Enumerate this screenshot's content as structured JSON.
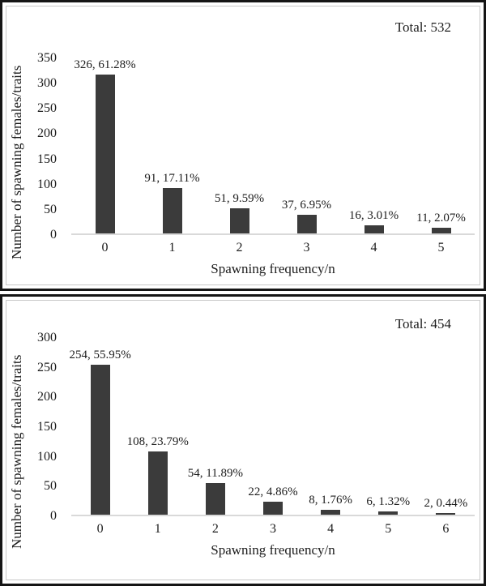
{
  "colors": {
    "bar_fill": "#3b3b3b",
    "axis_baseline": "#d9d9d9",
    "text": "#1c1c1c",
    "panel_border_outer": "#151515",
    "panel_border_inner": "#c9c9c9",
    "background": "#ffffff"
  },
  "chart_data": [
    {
      "type": "bar",
      "total_label": "Total: 532",
      "total": 532,
      "xlabel": "Spawning frequency/n",
      "ylabel": "Number of spawning females/traits",
      "categories": [
        "0",
        "1",
        "2",
        "3",
        "4",
        "5"
      ],
      "values": [
        326,
        91,
        51,
        37,
        16,
        11
      ],
      "percentages": [
        61.28,
        17.11,
        9.59,
        6.95,
        3.01,
        2.07
      ],
      "bar_labels": [
        "326, 61.28%",
        "91, 17.11%",
        "51, 9.59%",
        "37, 6.95%",
        "16, 3.01%",
        "11, 2.07%"
      ],
      "ymax": 350,
      "yticks": [
        0,
        50,
        100,
        150,
        200,
        250,
        300,
        350
      ],
      "grid": "off",
      "legend": "none"
    },
    {
      "type": "bar",
      "total_label": "Total: 454",
      "total": 454,
      "xlabel": "Spawning frequency/n",
      "ylabel": "Number of spawning females/traits",
      "categories": [
        "0",
        "1",
        "2",
        "3",
        "4",
        "5",
        "6"
      ],
      "values": [
        254,
        108,
        54,
        22,
        8,
        6,
        2
      ],
      "percentages": [
        55.95,
        23.79,
        11.89,
        4.86,
        1.76,
        1.32,
        0.44
      ],
      "bar_labels": [
        "254, 55.95%",
        "108, 23.79%",
        "54, 11.89%",
        "22, 4.86%",
        "8, 1.76%",
        "6, 1.32%",
        "2, 0.44%"
      ],
      "ymax": 300,
      "yticks": [
        0,
        50,
        100,
        150,
        200,
        250,
        300
      ],
      "grid": "off",
      "legend": "none"
    }
  ]
}
